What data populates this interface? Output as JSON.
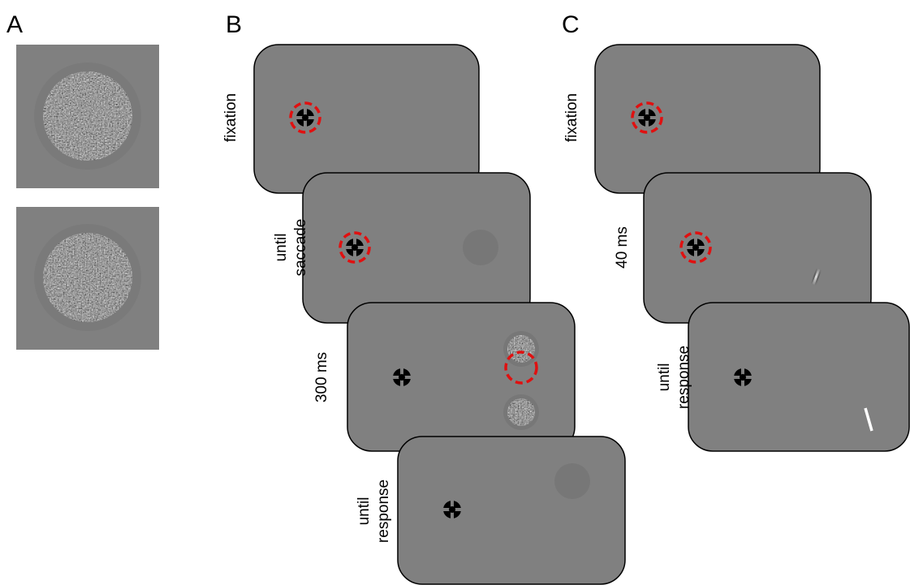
{
  "panels": [
    {
      "label": "A"
    },
    {
      "label": "B",
      "frames": [
        {
          "label": [
            "fixation"
          ]
        },
        {
          "label": [
            "until",
            "saccade"
          ]
        },
        {
          "label": [
            "300 ms"
          ]
        },
        {
          "label": [
            "until",
            "response"
          ]
        }
      ]
    },
    {
      "label": "C",
      "frames": [
        {
          "label": [
            "fixation"
          ]
        },
        {
          "label": [
            "40 ms"
          ]
        },
        {
          "label": [
            "until",
            "response"
          ]
        }
      ]
    }
  ]
}
